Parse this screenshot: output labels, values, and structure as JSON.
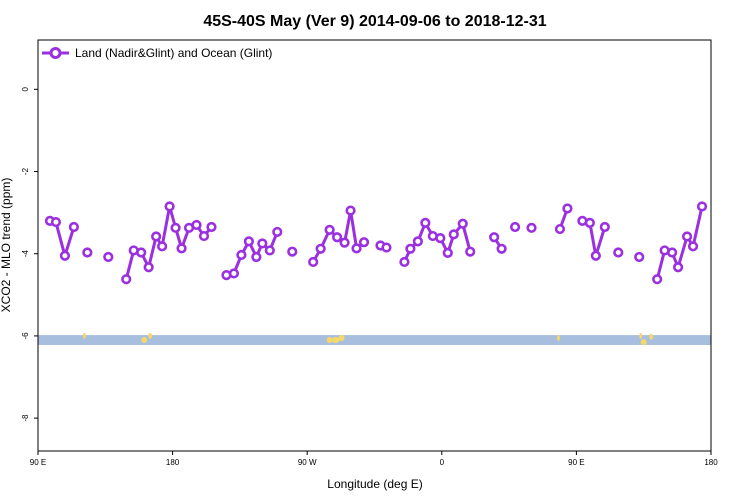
{
  "chart_data": {
    "type": "line",
    "title": "45S-40S May (Ver 9)   2014-09-06 to 2018-12-31",
    "xlabel": "Longitude (deg E)",
    "ylabel": "XCO2 - MLO trend (ppm)",
    "xlim": [
      90,
      540
    ],
    "ylim": [
      -8.8,
      1.2
    ],
    "x_ticks": [
      {
        "value": 90,
        "label": "90 E"
      },
      {
        "value": 180,
        "label": "180"
      },
      {
        "value": 270,
        "label": "90 W"
      },
      {
        "value": 360,
        "label": "0"
      },
      {
        "value": 450,
        "label": "90 E"
      },
      {
        "value": 540,
        "label": "180"
      }
    ],
    "y_ticks": [
      {
        "value": 0,
        "label": "0"
      },
      {
        "value": -2,
        "label": "-2"
      },
      {
        "value": -4,
        "label": "-4"
      },
      {
        "value": -6,
        "label": "-6"
      },
      {
        "value": -8,
        "label": "-8"
      }
    ],
    "legend": {
      "position": "top-left"
    },
    "land_strip": {
      "y_top": -5.98,
      "y_bottom": -6.22
    },
    "colors": {
      "series": "#9b30e0",
      "ocean": "#a8bede",
      "land": "#f5d76a"
    },
    "series": [
      {
        "name": "Land (Nadir&Glint) and Ocean (Glint)",
        "segments": [
          [
            [
              98,
              -3.2
            ],
            [
              102,
              -3.23
            ],
            [
              108,
              -4.05
            ],
            [
              114,
              -3.35
            ]
          ],
          [
            [
              123,
              -3.97
            ]
          ],
          [
            [
              137,
              -4.08
            ]
          ],
          [
            [
              149,
              -4.62
            ],
            [
              154,
              -3.92
            ],
            [
              159,
              -3.97
            ],
            [
              164,
              -4.33
            ],
            [
              169,
              -3.58
            ],
            [
              173,
              -3.82
            ],
            [
              178,
              -2.85
            ],
            [
              182,
              -3.37
            ],
            [
              186,
              -3.87
            ],
            [
              191,
              -3.37
            ],
            [
              196,
              -3.3
            ],
            [
              201,
              -3.57
            ],
            [
              206,
              -3.35
            ]
          ],
          [
            [
              216,
              -4.52
            ],
            [
              221,
              -4.48
            ],
            [
              226,
              -4.03
            ],
            [
              231,
              -3.7
            ],
            [
              236,
              -4.08
            ],
            [
              240,
              -3.75
            ],
            [
              245,
              -3.92
            ],
            [
              250,
              -3.47
            ]
          ],
          [
            [
              260,
              -3.95
            ]
          ],
          [
            [
              274,
              -4.2
            ],
            [
              279,
              -3.88
            ],
            [
              285,
              -3.42
            ],
            [
              290,
              -3.6
            ],
            [
              295,
              -3.73
            ],
            [
              299,
              -2.95
            ],
            [
              303,
              -3.87
            ],
            [
              308,
              -3.72
            ]
          ],
          [
            [
              319,
              -3.8
            ],
            [
              323,
              -3.85
            ]
          ],
          [
            [
              335,
              -4.2
            ],
            [
              339,
              -3.88
            ],
            [
              344,
              -3.7
            ],
            [
              349,
              -3.25
            ],
            [
              354,
              -3.57
            ],
            [
              359,
              -3.62
            ],
            [
              364,
              -3.98
            ],
            [
              368,
              -3.53
            ],
            [
              374,
              -3.27
            ],
            [
              379,
              -3.95
            ]
          ],
          [
            [
              395,
              -3.6
            ],
            [
              400,
              -3.88
            ]
          ],
          [
            [
              409,
              -3.35
            ]
          ],
          [
            [
              420,
              -3.37
            ]
          ],
          [
            [
              439,
              -3.4
            ],
            [
              444,
              -2.9
            ]
          ],
          [
            [
              454,
              -3.2
            ],
            [
              459,
              -3.25
            ],
            [
              463,
              -4.05
            ],
            [
              469,
              -3.35
            ]
          ],
          [
            [
              478,
              -3.97
            ]
          ],
          [
            [
              492,
              -4.08
            ]
          ],
          [
            [
              504,
              -4.62
            ],
            [
              509,
              -3.92
            ],
            [
              514,
              -3.97
            ],
            [
              518,
              -4.33
            ],
            [
              524,
              -3.58
            ],
            [
              528,
              -3.82
            ],
            [
              534,
              -2.85
            ]
          ]
        ]
      }
    ]
  }
}
